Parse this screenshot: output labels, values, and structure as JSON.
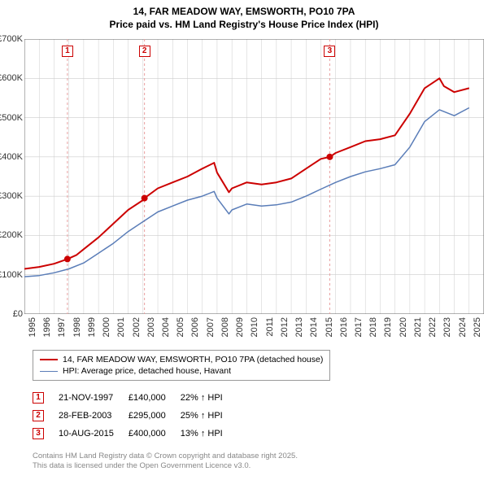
{
  "title_line1": "14, FAR MEADOW WAY, EMSWORTH, PO10 7PA",
  "title_line2": "Price paid vs. HM Land Registry's House Price Index (HPI)",
  "chart": {
    "type": "line",
    "background_color": "#ffffff",
    "grid_color": "#cccccc",
    "axis_color": "#666666",
    "xlim": [
      1995,
      2026
    ],
    "ylim": [
      0,
      700000
    ],
    "ytick_step": 100000,
    "ytick_labels": [
      "£0",
      "£100K",
      "£200K",
      "£300K",
      "£400K",
      "£500K",
      "£600K",
      "£700K"
    ],
    "xticks": [
      1995,
      1996,
      1997,
      1998,
      1999,
      2000,
      2001,
      2002,
      2003,
      2004,
      2005,
      2006,
      2007,
      2008,
      2009,
      2010,
      2011,
      2012,
      2013,
      2014,
      2015,
      2016,
      2017,
      2018,
      2019,
      2020,
      2021,
      2022,
      2023,
      2024,
      2025
    ],
    "label_fontsize": 11,
    "title_fontsize": 12,
    "series": [
      {
        "name": "14, FAR MEADOW WAY, EMSWORTH, PO10 7PA (detached house)",
        "color": "#cc0000",
        "line_width": 2,
        "x": [
          1995,
          1996,
          1997,
          1997.9,
          1998.5,
          1999,
          2000,
          2001,
          2002,
          2003,
          2003.1,
          2004,
          2005,
          2006,
          2007,
          2007.8,
          2008,
          2008.8,
          2009,
          2010,
          2011,
          2012,
          2013,
          2014,
          2015,
          2015.6,
          2016,
          2017,
          2018,
          2019,
          2020,
          2021,
          2022,
          2023,
          2023.3,
          2024,
          2025
        ],
        "y": [
          115000,
          120000,
          128000,
          140000,
          150000,
          165000,
          195000,
          230000,
          265000,
          290000,
          295000,
          320000,
          335000,
          350000,
          370000,
          385000,
          360000,
          310000,
          320000,
          335000,
          330000,
          335000,
          345000,
          370000,
          395000,
          400000,
          410000,
          425000,
          440000,
          445000,
          455000,
          510000,
          575000,
          600000,
          580000,
          565000,
          575000
        ]
      },
      {
        "name": "HPI: Average price, detached house, Havant",
        "color": "#5a7db8",
        "line_width": 1.5,
        "x": [
          1995,
          1996,
          1997,
          1998,
          1999,
          2000,
          2001,
          2002,
          2003,
          2004,
          2005,
          2006,
          2007,
          2007.8,
          2008,
          2008.8,
          2009,
          2010,
          2011,
          2012,
          2013,
          2014,
          2015,
          2016,
          2017,
          2018,
          2019,
          2020,
          2021,
          2022,
          2023,
          2024,
          2025
        ],
        "y": [
          95000,
          98000,
          105000,
          115000,
          130000,
          155000,
          180000,
          210000,
          235000,
          260000,
          275000,
          290000,
          300000,
          312000,
          295000,
          255000,
          265000,
          280000,
          275000,
          278000,
          285000,
          300000,
          318000,
          335000,
          350000,
          362000,
          370000,
          380000,
          425000,
          490000,
          520000,
          505000,
          525000
        ]
      }
    ],
    "sale_markers": [
      {
        "n": "1",
        "x": 1997.9,
        "y": 140000,
        "color": "#cc0000",
        "line_color": "#e9a0a0"
      },
      {
        "n": "2",
        "x": 2003.1,
        "y": 295000,
        "color": "#cc0000",
        "line_color": "#e9a0a0"
      },
      {
        "n": "3",
        "x": 2015.6,
        "y": 400000,
        "color": "#cc0000",
        "line_color": "#e9a0a0"
      }
    ]
  },
  "legend": {
    "items": [
      {
        "label": "14, FAR MEADOW WAY, EMSWORTH, PO10 7PA (detached house)",
        "color": "#cc0000",
        "width": 2
      },
      {
        "label": "HPI: Average price, detached house, Havant",
        "color": "#5a7db8",
        "width": 1.5
      }
    ]
  },
  "sales": [
    {
      "n": "1",
      "date": "21-NOV-1997",
      "price": "£140,000",
      "delta": "22% ↑ HPI",
      "color": "#cc0000"
    },
    {
      "n": "2",
      "date": "28-FEB-2003",
      "price": "£295,000",
      "delta": "25% ↑ HPI",
      "color": "#cc0000"
    },
    {
      "n": "3",
      "date": "10-AUG-2015",
      "price": "£400,000",
      "delta": "13% ↑ HPI",
      "color": "#cc0000"
    }
  ],
  "copyright_line1": "Contains HM Land Registry data © Crown copyright and database right 2025.",
  "copyright_line2": "This data is licensed under the Open Government Licence v3.0."
}
